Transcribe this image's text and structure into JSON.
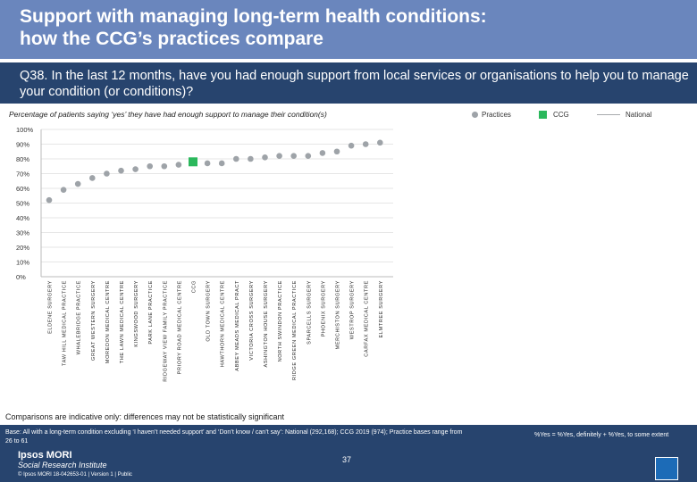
{
  "header": {
    "title_line1": "Support with managing long-term health conditions:",
    "title_line2": "how the CCG’s practices compare",
    "question": "Q38. In the last 12 months, have you had enough support from local services or organisations to help you to manage your condition (or conditions)?"
  },
  "subtitle": "Percentage of patients saying ‘yes’ they have had enough support to manage their condition(s)",
  "legend": {
    "practices": "Practices",
    "ccg": "CCG",
    "national": "National"
  },
  "colors": {
    "practice": "#9ea3a8",
    "ccg": "#2bb85c",
    "national": "#a8aaad",
    "header": "#6a86bd",
    "band": "#27446e"
  },
  "chart_data": {
    "type": "scatter",
    "categories": [
      "ELDENE SURGERY",
      "TAW HILL MEDICAL PRACTICE",
      "WHALEBRIDGE PRACTICE",
      "GREAT WESTERN SURGERY",
      "MOREDON MEDICAL CENTRE",
      "THE LAWN MEDICAL CENTRE",
      "KINGSWOOD SURGERY",
      "PARK LANE PRACTICE",
      "RIDGEWAY VIEW FAMILY PRACTICE",
      "PRIORY ROAD MEDICAL CENTRE",
      "CCG",
      "OLD TOWN SURGERY",
      "HAWTHORN MEDICAL CENTRE",
      "ABBEY MEADS MEDICAL PRACT",
      "VICTORIA CROSS SURGERY",
      "ASHINGTON HOUSE SURGERY",
      "NORTH SWINDON PRACTICE",
      "RIDGE GREEN MEDICAL PRACTICE",
      "SPARCELLS SURGERY",
      "PHOENIX SURGERY",
      "MERCHISTON SURGERY",
      "WESTROP SURGERY",
      "CARFAX MEDICAL CENTRE",
      "ELMTREE SURGERY"
    ],
    "values": [
      52,
      59,
      63,
      67,
      70,
      72,
      73,
      75,
      75,
      76,
      78,
      77,
      77,
      80,
      80,
      81,
      82,
      82,
      82,
      84,
      85,
      89,
      90,
      91
    ],
    "ccg_index": 10,
    "national_value": null,
    "yticks": [
      "0%",
      "10%",
      "20%",
      "30%",
      "40%",
      "50%",
      "60%",
      "70%",
      "80%",
      "90%",
      "100%"
    ],
    "ylim": [
      0,
      100
    ]
  },
  "footer": {
    "note": "Comparisons are indicative only: differences may not be statistically significant",
    "base": "Base: All with a long-term condition excluding ‘I haven’t needed support’ and ‘Don’t know / can’t say’: National (292,168); CCG 2019 (974); Practice bases range from 26 to 61",
    "yes_definition": "%Yes = %Yes, definitely + %Yes, to some extent",
    "page_number": "37",
    "logo_line1": "Ipsos MORI",
    "logo_line2": "Social Research Institute",
    "copyright": "© Ipsos MORI     18-042653-01 | Version 1 | Public"
  }
}
